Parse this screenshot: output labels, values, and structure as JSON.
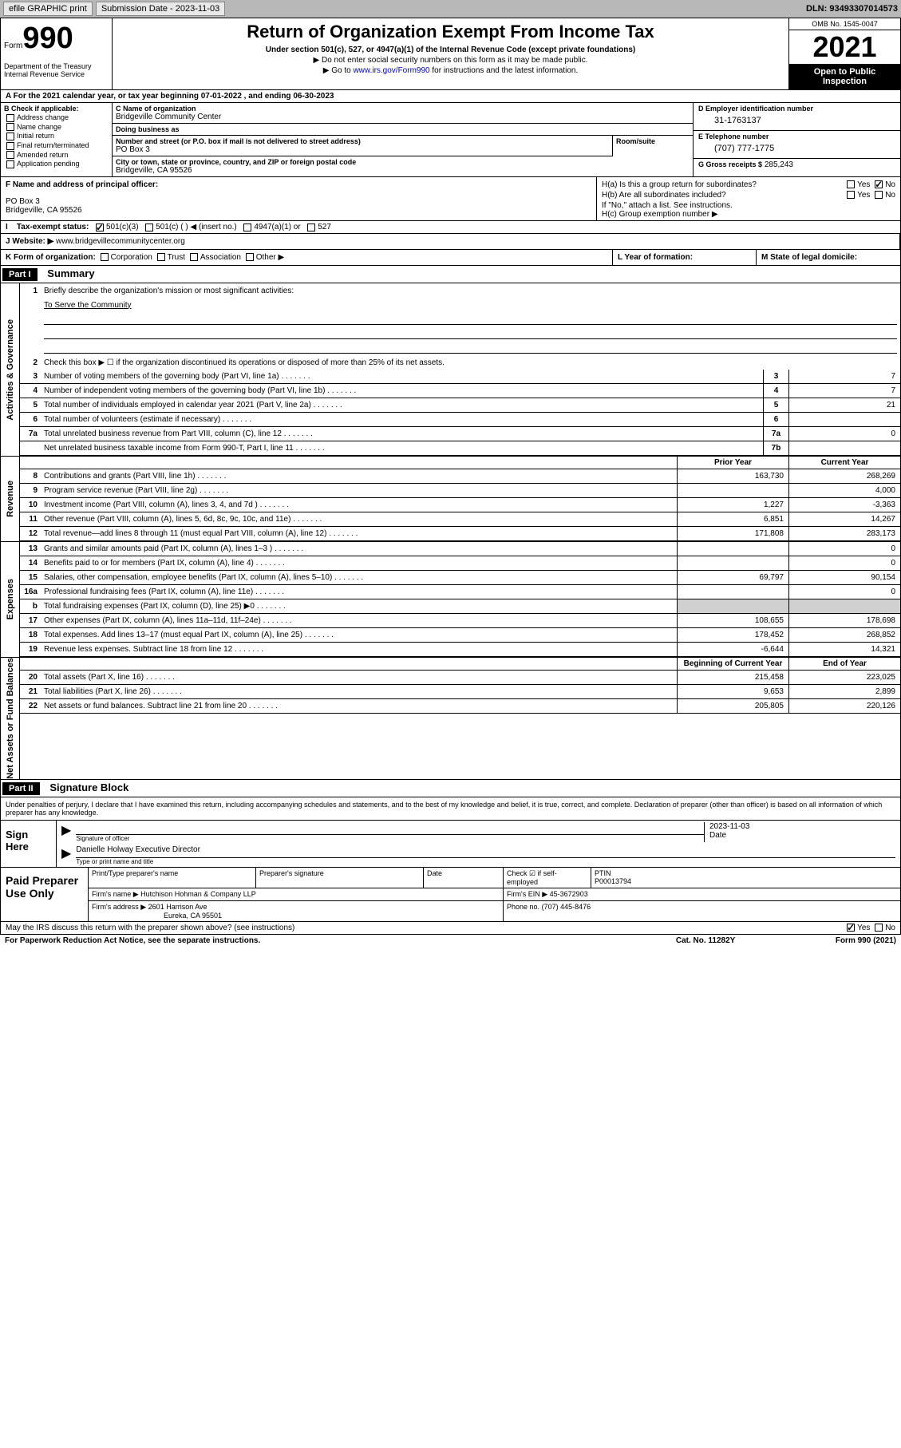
{
  "topbar": {
    "efile": "efile GRAPHIC print",
    "submission_label": "Submission Date - 2023-11-03",
    "dln": "DLN: 93493307014573"
  },
  "header": {
    "form_prefix": "Form",
    "form_number": "990",
    "dept": "Department of the Treasury\nInternal Revenue Service",
    "title": "Return of Organization Exempt From Income Tax",
    "subtitle": "Under section 501(c), 527, or 4947(a)(1) of the Internal Revenue Code (except private foundations)",
    "instr1": "▶ Do not enter social security numbers on this form as it may be made public.",
    "instr2_pre": "▶ Go to ",
    "instr2_link": "www.irs.gov/Form990",
    "instr2_post": " for instructions and the latest information.",
    "omb": "OMB No. 1545-0047",
    "year": "2021",
    "inspection": "Open to Public Inspection"
  },
  "row_a": "A For the 2021 calendar year, or tax year beginning 07-01-2022  , and ending 06-30-2023",
  "box_b": {
    "hdr": "B Check if applicable:",
    "items": [
      "Address change",
      "Name change",
      "Initial return",
      "Final return/terminated",
      "Amended return",
      "Application pending"
    ]
  },
  "box_c": {
    "name_label": "C Name of organization",
    "name": "Bridgeville Community Center",
    "dba_label": "Doing business as",
    "dba": "",
    "addr_label": "Number and street (or P.O. box if mail is not delivered to street address)",
    "addr": "PO Box 3",
    "room_label": "Room/suite",
    "city_label": "City or town, state or province, country, and ZIP or foreign postal code",
    "city": "Bridgeville, CA  95526"
  },
  "box_d": {
    "ein_label": "D Employer identification number",
    "ein": "31-1763137",
    "phone_label": "E Telephone number",
    "phone": "(707) 777-1775",
    "gross_label": "G Gross receipts $",
    "gross": "285,243"
  },
  "row_f": {
    "label": "F  Name and address of principal officer:",
    "addr1": "PO Box 3",
    "addr2": "Bridgeville, CA  95526"
  },
  "row_h": {
    "ha_label": "H(a)  Is this a group return for subordinates?",
    "hb_label": "H(b)  Are all subordinates included?",
    "hb_note": "If \"No,\" attach a list. See instructions.",
    "hc_label": "H(c)  Group exemption number ▶"
  },
  "row_i": {
    "label": "Tax-exempt status:",
    "opt1": "501(c)(3)",
    "opt2": "501(c) (  ) ◀ (insert no.)",
    "opt3": "4947(a)(1) or",
    "opt4": "527"
  },
  "row_j": {
    "label": "J     Website: ▶",
    "val": "www.bridgevillecommunitycenter.org"
  },
  "row_k": "K Form of organization:",
  "row_k_opts": [
    "Corporation",
    "Trust",
    "Association",
    "Other ▶"
  ],
  "row_l": "L Year of formation:",
  "row_m": "M State of legal domicile:",
  "part1": {
    "hdr": "Part I",
    "title": "Summary",
    "line1_label": "Briefly describe the organization's mission or most significant activities:",
    "line1_val": "To Serve the Community",
    "line2": "Check this box ▶ ☐  if the organization discontinued its operations or disposed of more than 25% of its net assets.",
    "lines": [
      {
        "n": "3",
        "t": "Number of voting members of the governing body (Part VI, line 1a)",
        "box": "3",
        "v": "7"
      },
      {
        "n": "4",
        "t": "Number of independent voting members of the governing body (Part VI, line 1b)",
        "box": "4",
        "v": "7"
      },
      {
        "n": "5",
        "t": "Total number of individuals employed in calendar year 2021 (Part V, line 2a)",
        "box": "5",
        "v": "21"
      },
      {
        "n": "6",
        "t": "Total number of volunteers (estimate if necessary)",
        "box": "6",
        "v": ""
      },
      {
        "n": "7a",
        "t": "Total unrelated business revenue from Part VIII, column (C), line 12",
        "box": "7a",
        "v": "0"
      },
      {
        "n": "",
        "t": "Net unrelated business taxable income from Form 990-T, Part I, line 11",
        "box": "7b",
        "v": ""
      }
    ],
    "col_prior": "Prior Year",
    "col_current": "Current Year",
    "revenue": [
      {
        "n": "8",
        "t": "Contributions and grants (Part VIII, line 1h)",
        "p": "163,730",
        "c": "268,269"
      },
      {
        "n": "9",
        "t": "Program service revenue (Part VIII, line 2g)",
        "p": "",
        "c": "4,000"
      },
      {
        "n": "10",
        "t": "Investment income (Part VIII, column (A), lines 3, 4, and 7d )",
        "p": "1,227",
        "c": "-3,363"
      },
      {
        "n": "11",
        "t": "Other revenue (Part VIII, column (A), lines 5, 6d, 8c, 9c, 10c, and 11e)",
        "p": "6,851",
        "c": "14,267"
      },
      {
        "n": "12",
        "t": "Total revenue—add lines 8 through 11 (must equal Part VIII, column (A), line 12)",
        "p": "171,808",
        "c": "283,173"
      }
    ],
    "expenses": [
      {
        "n": "13",
        "t": "Grants and similar amounts paid (Part IX, column (A), lines 1–3 )",
        "p": "",
        "c": "0"
      },
      {
        "n": "14",
        "t": "Benefits paid to or for members (Part IX, column (A), line 4)",
        "p": "",
        "c": "0"
      },
      {
        "n": "15",
        "t": "Salaries, other compensation, employee benefits (Part IX, column (A), lines 5–10)",
        "p": "69,797",
        "c": "90,154"
      },
      {
        "n": "16a",
        "t": "Professional fundraising fees (Part IX, column (A), line 11e)",
        "p": "",
        "c": "0"
      },
      {
        "n": "b",
        "t": "Total fundraising expenses (Part IX, column (D), line 25) ▶0",
        "p": "shade",
        "c": "shade"
      },
      {
        "n": "17",
        "t": "Other expenses (Part IX, column (A), lines 11a–11d, 11f–24e)",
        "p": "108,655",
        "c": "178,698"
      },
      {
        "n": "18",
        "t": "Total expenses. Add lines 13–17 (must equal Part IX, column (A), line 25)",
        "p": "178,452",
        "c": "268,852"
      },
      {
        "n": "19",
        "t": "Revenue less expenses. Subtract line 18 from line 12",
        "p": "-6,644",
        "c": "14,321"
      }
    ],
    "col_begin": "Beginning of Current Year",
    "col_end": "End of Year",
    "netassets": [
      {
        "n": "20",
        "t": "Total assets (Part X, line 16)",
        "p": "215,458",
        "c": "223,025"
      },
      {
        "n": "21",
        "t": "Total liabilities (Part X, line 26)",
        "p": "9,653",
        "c": "2,899"
      },
      {
        "n": "22",
        "t": "Net assets or fund balances. Subtract line 21 from line 20",
        "p": "205,805",
        "c": "220,126"
      }
    ],
    "vtab_gov": "Activities & Governance",
    "vtab_rev": "Revenue",
    "vtab_exp": "Expenses",
    "vtab_net": "Net Assets or Fund Balances"
  },
  "part2": {
    "hdr": "Part II",
    "title": "Signature Block",
    "decl": "Under penalties of perjury, I declare that I have examined this return, including accompanying schedules and statements, and to the best of my knowledge and belief, it is true, correct, and complete. Declaration of preparer (other than officer) is based on all information of which preparer has any knowledge.",
    "sign_here": "Sign Here",
    "sig_officer": "Signature of officer",
    "date": "Date",
    "sig_date": "2023-11-03",
    "officer_name": "Danielle Holway  Executive Director",
    "name_title": "Type or print name and title",
    "paid_prep": "Paid Preparer Use Only",
    "prep_name_label": "Print/Type preparer's name",
    "prep_sig_label": "Preparer's signature",
    "prep_date_label": "Date",
    "check_if": "Check ☑ if self-employed",
    "ptin_label": "PTIN",
    "ptin": "P00013794",
    "firm_name_label": "Firm's name    ▶",
    "firm_name": "Hutchison Hohman & Company LLP",
    "firm_ein_label": "Firm's EIN ▶",
    "firm_ein": "45-3672903",
    "firm_addr_label": "Firm's address ▶",
    "firm_addr1": "2601 Harrison Ave",
    "firm_addr2": "Eureka, CA  95501",
    "firm_phone_label": "Phone no.",
    "firm_phone": "(707) 445-8476",
    "discuss": "May the IRS discuss this return with the preparer shown above? (see instructions)",
    "yes": "Yes",
    "no": "No"
  },
  "footer": {
    "paperwork": "For Paperwork Reduction Act Notice, see the separate instructions.",
    "cat": "Cat. No. 11282Y",
    "form": "Form 990 (2021)"
  }
}
